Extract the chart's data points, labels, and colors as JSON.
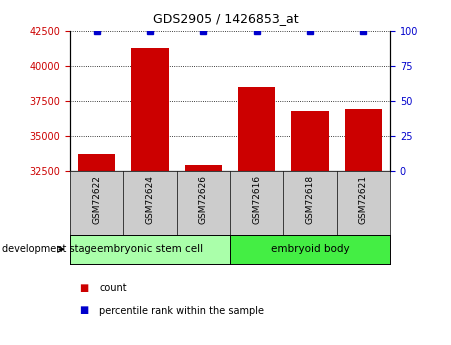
{
  "title": "GDS2905 / 1426853_at",
  "categories": [
    "GSM72622",
    "GSM72624",
    "GSM72626",
    "GSM72616",
    "GSM72618",
    "GSM72621"
  ],
  "bar_values": [
    33700,
    41300,
    32900,
    38500,
    36800,
    36900
  ],
  "percentile_values": [
    100,
    100,
    100,
    100,
    100,
    100
  ],
  "bar_color": "#cc0000",
  "dot_color": "#0000cc",
  "ylim_left": [
    32500,
    42500
  ],
  "ylim_right": [
    0,
    100
  ],
  "yticks_left": [
    32500,
    35000,
    37500,
    40000,
    42500
  ],
  "yticks_right": [
    0,
    25,
    50,
    75,
    100
  ],
  "background_color": "#ffffff",
  "group1_label": "embryonic stem cell",
  "group2_label": "embryoid body",
  "group1_indices": [
    0,
    1,
    2
  ],
  "group2_indices": [
    3,
    4,
    5
  ],
  "group1_color": "#aaffaa",
  "group2_color": "#44ee44",
  "stage_label": "development stage",
  "legend_count": "count",
  "legend_percentile": "percentile rank within the sample",
  "tick_color_left": "#cc0000",
  "tick_color_right": "#0000cc",
  "bar_width": 0.7,
  "label_area_color": "#cccccc",
  "n_cats": 6
}
